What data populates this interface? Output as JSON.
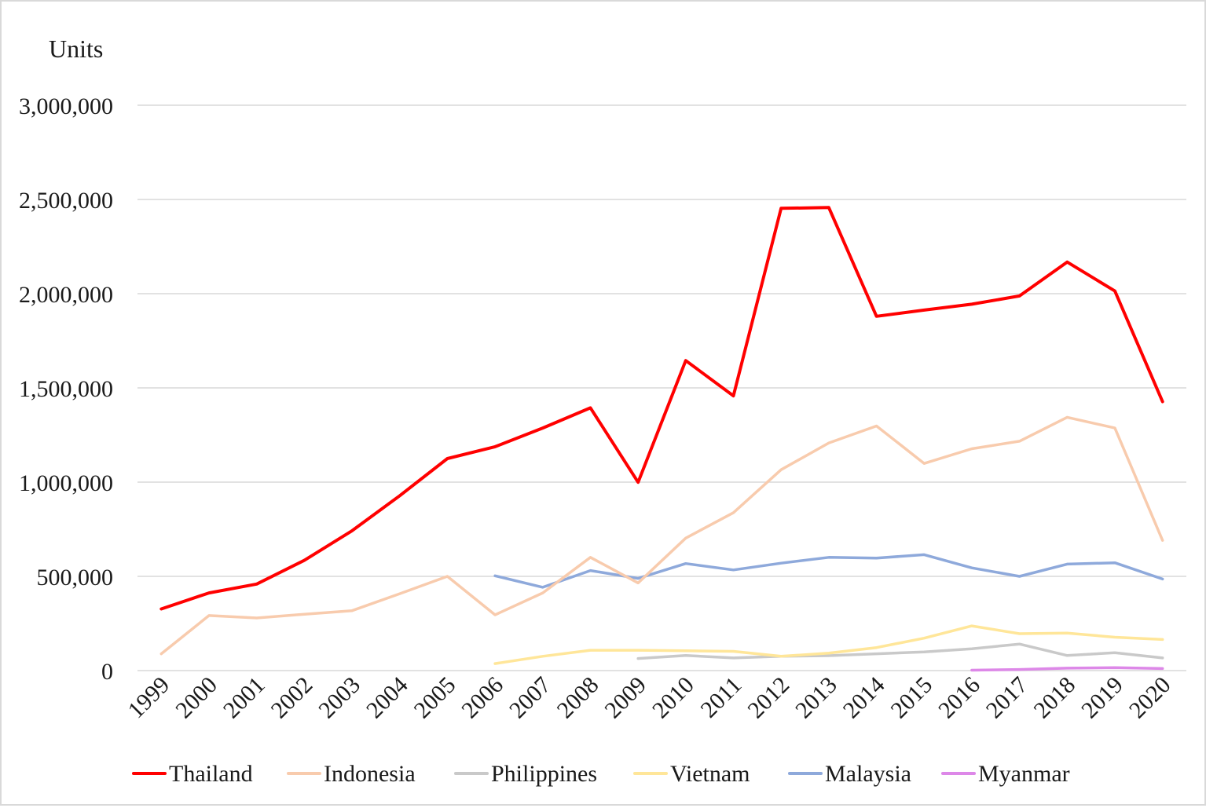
{
  "chart_data": {
    "type": "line",
    "title": "",
    "ylabel": "Units",
    "xlabel": "",
    "ylim": [
      0,
      3000000
    ],
    "yticks": [
      0,
      500000,
      1000000,
      1500000,
      2000000,
      2500000,
      3000000
    ],
    "ytick_labels": [
      "0",
      "500,000",
      "1,000,000",
      "1,500,000",
      "2,000,000",
      "2,500,000",
      "3,000,000"
    ],
    "categories": [
      "1999",
      "2000",
      "2001",
      "2002",
      "2003",
      "2004",
      "2005",
      "2006",
      "2007",
      "2008",
      "2009",
      "2010",
      "2011",
      "2012",
      "2013",
      "2014",
      "2015",
      "2016",
      "2017",
      "2018",
      "2019",
      "2020"
    ],
    "grid": true,
    "legend_position": "bottom",
    "series": [
      {
        "name": "Thailand",
        "color": "#ff0000",
        "values": [
          327000,
          412000,
          459000,
          585000,
          742000,
          928000,
          1125000,
          1188000,
          1287000,
          1394000,
          999000,
          1645000,
          1458000,
          2453000,
          2457000,
          1880000,
          1913000,
          1944000,
          1988000,
          2168000,
          2014000,
          1427000
        ]
      },
      {
        "name": "Indonesia",
        "color": "#f8cbad",
        "values": [
          89000,
          292000,
          279000,
          299000,
          318000,
          408000,
          500000,
          296000,
          412000,
          601000,
          465000,
          703000,
          838000,
          1066000,
          1208000,
          1298000,
          1099000,
          1177000,
          1217000,
          1344000,
          1287000,
          691000
        ]
      },
      {
        "name": "Philippines",
        "color": "#c9c9c9",
        "values": [
          null,
          null,
          null,
          null,
          null,
          null,
          null,
          null,
          null,
          null,
          64000,
          80000,
          67000,
          76000,
          79000,
          89000,
          99000,
          116000,
          141000,
          80000,
          95000,
          67000
        ]
      },
      {
        "name": "Vietnam",
        "color": "#ffe699",
        "values": [
          null,
          null,
          null,
          null,
          null,
          null,
          null,
          37000,
          76000,
          108000,
          108000,
          105000,
          102000,
          76000,
          93000,
          122000,
          172000,
          237000,
          196000,
          199000,
          177000,
          165000
        ]
      },
      {
        "name": "Malaysia",
        "color": "#8ea9db",
        "values": [
          null,
          null,
          null,
          null,
          null,
          null,
          null,
          503000,
          442000,
          531000,
          489000,
          568000,
          534000,
          570000,
          601000,
          597000,
          615000,
          545000,
          500000,
          565000,
          572000,
          486000
        ]
      },
      {
        "name": "Myanmar",
        "color": "#dd88e8",
        "values": [
          null,
          null,
          null,
          null,
          null,
          null,
          null,
          null,
          null,
          null,
          null,
          null,
          null,
          null,
          null,
          null,
          null,
          2000,
          6000,
          13000,
          16000,
          11000
        ]
      }
    ]
  }
}
